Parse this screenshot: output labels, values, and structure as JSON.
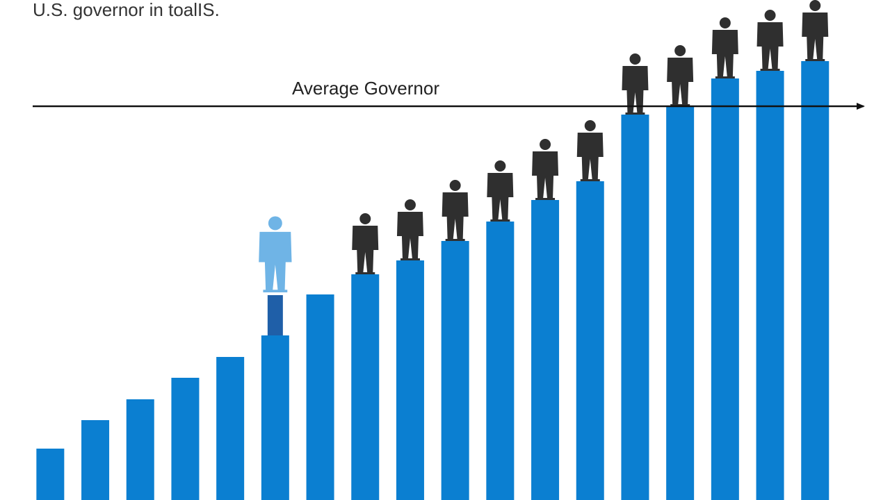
{
  "chart_data": {
    "type": "bar",
    "title": "U.S. governor in toalIS.",
    "categories": [
      null,
      null,
      null,
      null,
      null,
      null,
      null,
      null,
      null,
      null,
      null,
      null,
      null,
      null,
      null,
      null,
      null,
      null
    ],
    "values": [
      74,
      115,
      145,
      176,
      206,
      237,
      296,
      325,
      345,
      373,
      401,
      432,
      459,
      555,
      567,
      607,
      618,
      632
    ],
    "color": "#0b7fd1",
    "ylim": [
      0,
      720
    ],
    "reference_line": {
      "label": "Average Governor",
      "value": 567
    }
  }
}
